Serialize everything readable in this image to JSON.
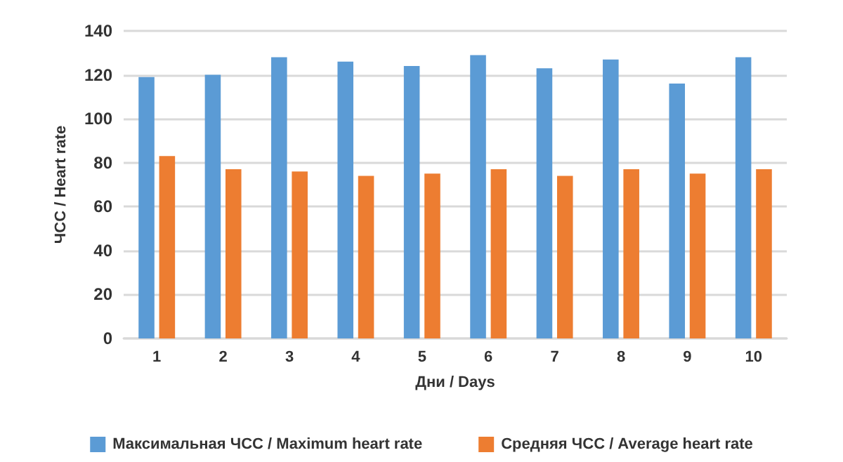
{
  "chart_data": {
    "type": "bar",
    "xlabel": "Дни / Days",
    "ylabel": "ЧСС / Heart rate",
    "categories": [
      "1",
      "2",
      "3",
      "4",
      "5",
      "6",
      "7",
      "8",
      "9",
      "10"
    ],
    "series": [
      {
        "name": "Максимальная ЧСС / Maximum heart rate",
        "color": "#5b9bd5",
        "values": [
          119,
          120,
          128,
          126,
          124,
          129,
          123,
          127,
          116,
          128
        ]
      },
      {
        "name": "Средняя ЧСС / Average heart rate",
        "color": "#ed7d31",
        "values": [
          83,
          77,
          76,
          74,
          75,
          77,
          74,
          77,
          75,
          77
        ]
      }
    ],
    "ylim": [
      0,
      140
    ],
    "yticks": [
      0,
      20,
      40,
      60,
      80,
      100,
      120,
      140
    ],
    "grid": "y",
    "legend": "bottom"
  }
}
